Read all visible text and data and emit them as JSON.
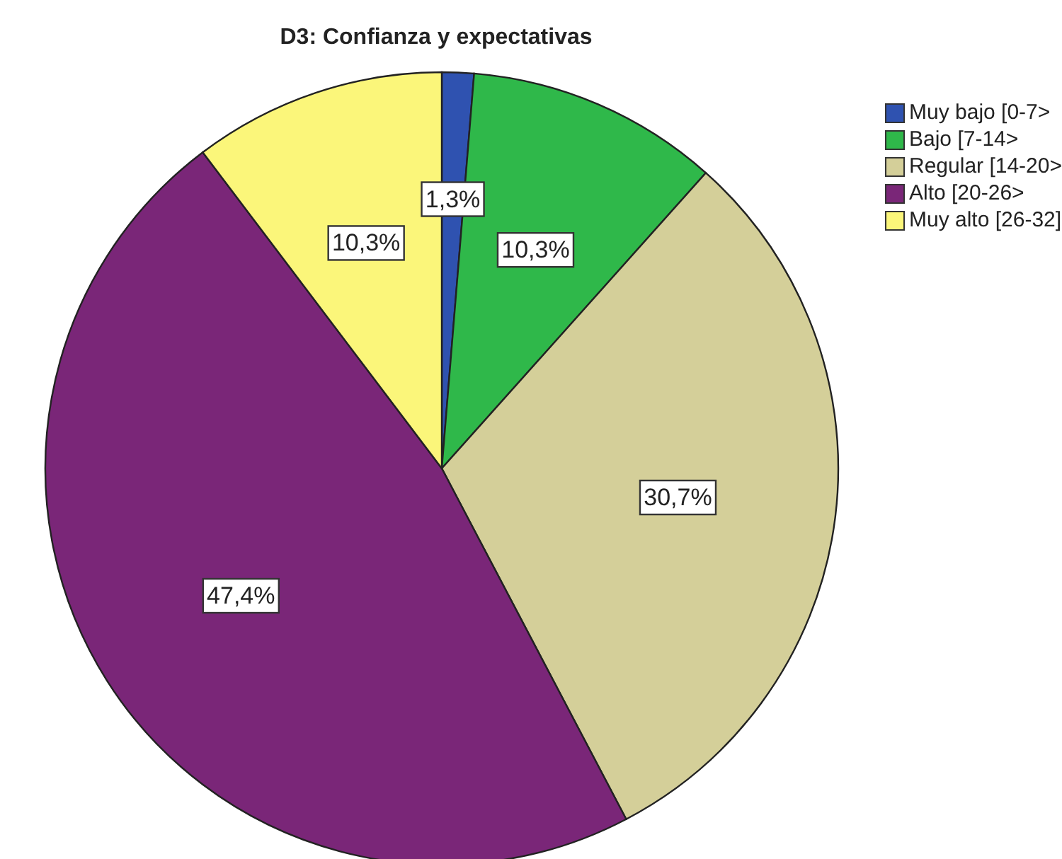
{
  "chart_data": {
    "type": "pie",
    "title": "D3: Confianza y expectativas",
    "categories": [
      "Muy bajo [0-7>",
      "Bajo [7-14>",
      "Regular [14-20>",
      "Alto [20-26>",
      "Muy alto [26-32]"
    ],
    "values": [
      1.3,
      10.3,
      30.7,
      47.4,
      10.3
    ],
    "value_labels": [
      "1,3%",
      "10,3%",
      "30,7%",
      "47,4%",
      "10,3%"
    ],
    "colors": [
      "#2f52b0",
      "#2fb84a",
      "#d4cf99",
      "#7a2678",
      "#fbf67a"
    ],
    "legend": "top right"
  }
}
